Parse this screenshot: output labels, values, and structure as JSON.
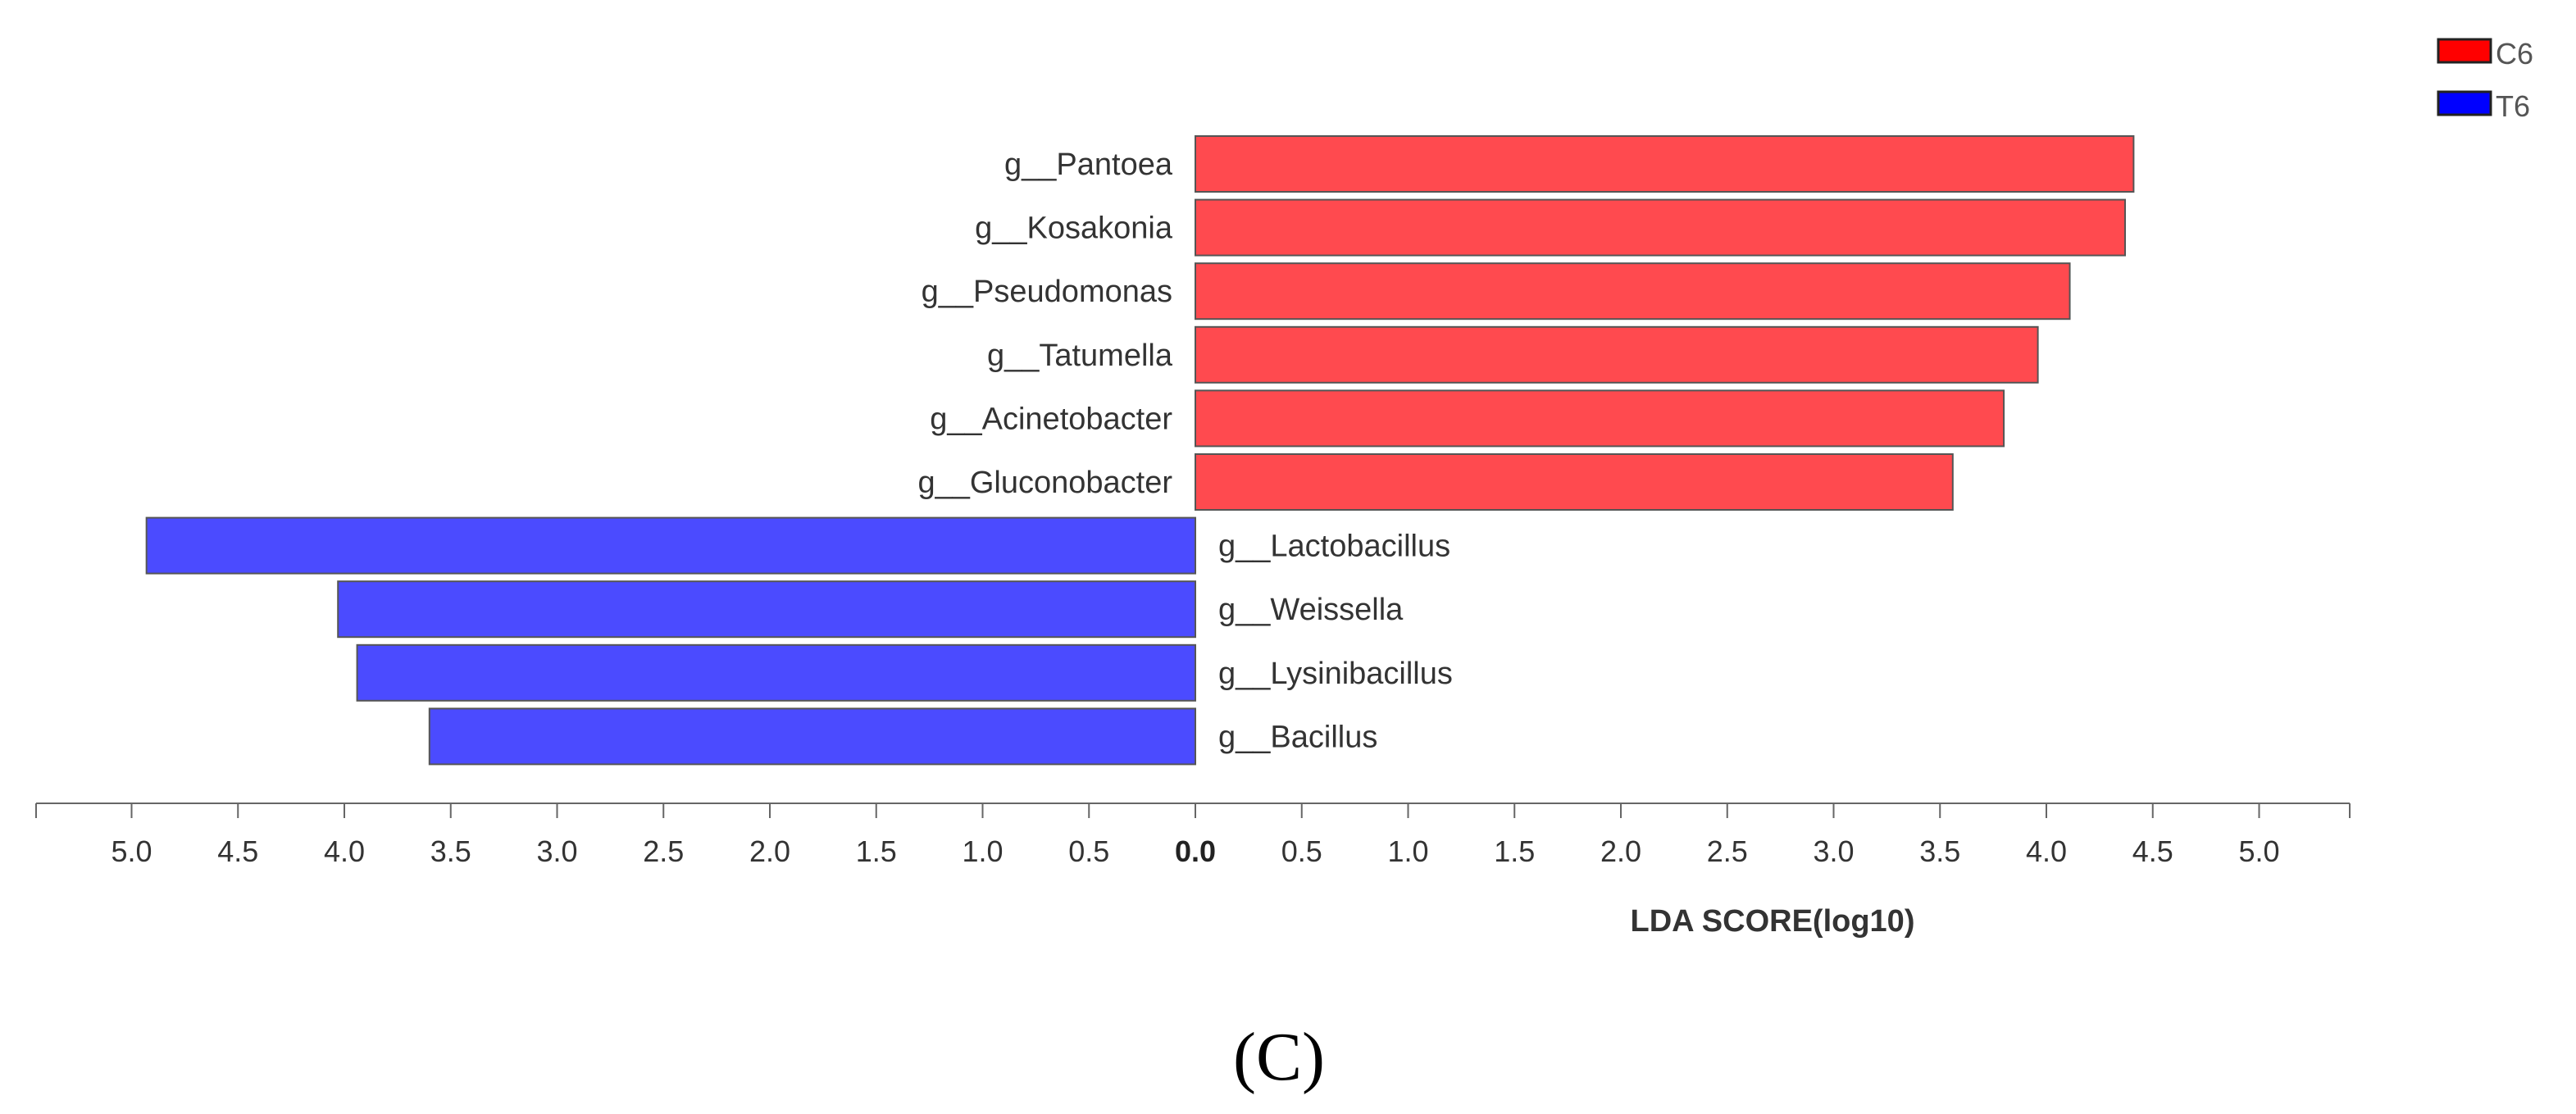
{
  "chart_data": {
    "type": "bar",
    "orientation": "horizontal",
    "xlabel": "LDA SCORE(log10)",
    "panel_label": "(C)",
    "x_range": [
      0,
      5
    ],
    "tick_values": [
      5.0,
      4.5,
      4.0,
      3.5,
      3.0,
      2.5,
      2.0,
      1.5,
      1.0,
      0.5,
      0.0,
      0.5,
      1.0,
      1.5,
      2.0,
      2.5,
      3.0,
      3.5,
      4.0,
      4.5,
      5.0
    ],
    "tick_labels": [
      "5.0",
      "4.5",
      "4.0",
      "3.5",
      "3.0",
      "2.5",
      "2.0",
      "1.5",
      "1.0",
      "0.5",
      "0.0",
      "0.5",
      "1.0",
      "1.5",
      "2.0",
      "2.5",
      "3.0",
      "3.5",
      "4.0",
      "4.5",
      "5.0"
    ],
    "legend": [
      {
        "name": "C6",
        "color": "#ff0000"
      },
      {
        "name": "T6",
        "color": "#0000ff"
      }
    ],
    "bar_colors": {
      "C6": "#ff4a4f",
      "T6": "#4b4bff"
    },
    "bars": [
      {
        "label": "g__Pantoea",
        "group": "C6",
        "value": 4.41
      },
      {
        "label": "g__Kosakonia",
        "group": "C6",
        "value": 4.37
      },
      {
        "label": "g__Pseudomonas",
        "group": "C6",
        "value": 4.11
      },
      {
        "label": "g__Tatumella",
        "group": "C6",
        "value": 3.96
      },
      {
        "label": "g__Acinetobacter",
        "group": "C6",
        "value": 3.8
      },
      {
        "label": "g__Gluconobacter",
        "group": "C6",
        "value": 3.56
      },
      {
        "label": "g__Lactobacillus",
        "group": "T6",
        "value": 4.93
      },
      {
        "label": "g__Weissella",
        "group": "T6",
        "value": 4.03
      },
      {
        "label": "g__Lysinibacillus",
        "group": "T6",
        "value": 3.94
      },
      {
        "label": "g__Bacillus",
        "group": "T6",
        "value": 3.6
      }
    ]
  }
}
